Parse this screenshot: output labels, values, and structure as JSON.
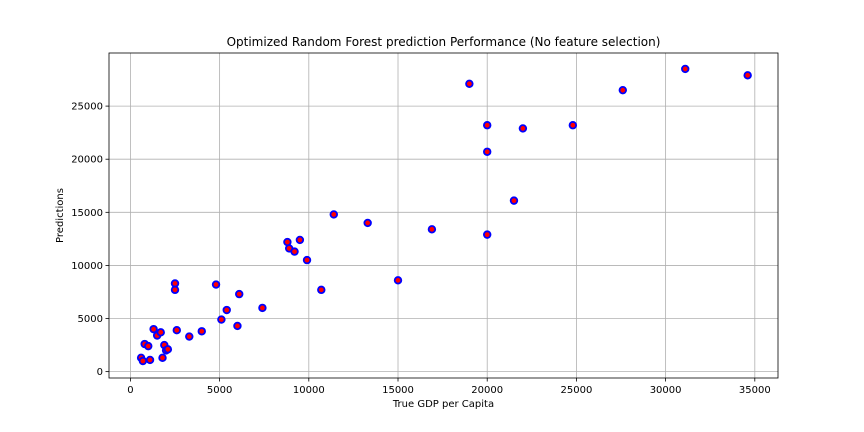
{
  "chart_data": {
    "type": "scatter",
    "title": "Optimized Random Forest prediction Performance (No feature selection)",
    "xlabel": "True GDP per Capita",
    "ylabel": "Predictions",
    "xlim": [
      -1200,
      36300
    ],
    "ylim": [
      -600,
      30000
    ],
    "xticks": [
      0,
      5000,
      10000,
      15000,
      20000,
      25000,
      30000,
      35000
    ],
    "yticks": [
      0,
      5000,
      10000,
      15000,
      20000,
      25000
    ],
    "grid": true,
    "marker": {
      "face_color": "#ff0000",
      "edge_color": "#0000ff"
    },
    "points": [
      {
        "x": 600,
        "y": 1300
      },
      {
        "x": 700,
        "y": 1000
      },
      {
        "x": 800,
        "y": 2600
      },
      {
        "x": 1000,
        "y": 2400
      },
      {
        "x": 1100,
        "y": 1100
      },
      {
        "x": 1300,
        "y": 4000
      },
      {
        "x": 1500,
        "y": 3400
      },
      {
        "x": 1700,
        "y": 3700
      },
      {
        "x": 1800,
        "y": 1300
      },
      {
        "x": 1900,
        "y": 2500
      },
      {
        "x": 2000,
        "y": 2000
      },
      {
        "x": 2100,
        "y": 2100
      },
      {
        "x": 2500,
        "y": 8300
      },
      {
        "x": 2500,
        "y": 7700
      },
      {
        "x": 2600,
        "y": 3900
      },
      {
        "x": 3300,
        "y": 3300
      },
      {
        "x": 4000,
        "y": 3800
      },
      {
        "x": 4800,
        "y": 8200
      },
      {
        "x": 5100,
        "y": 4900
      },
      {
        "x": 5400,
        "y": 5800
      },
      {
        "x": 6000,
        "y": 4300
      },
      {
        "x": 6100,
        "y": 7300
      },
      {
        "x": 7400,
        "y": 6000
      },
      {
        "x": 8800,
        "y": 12200
      },
      {
        "x": 8900,
        "y": 11600
      },
      {
        "x": 9200,
        "y": 11300
      },
      {
        "x": 9500,
        "y": 12400
      },
      {
        "x": 9900,
        "y": 10500
      },
      {
        "x": 10700,
        "y": 7700
      },
      {
        "x": 11400,
        "y": 14800
      },
      {
        "x": 13300,
        "y": 14000
      },
      {
        "x": 15000,
        "y": 8600
      },
      {
        "x": 16900,
        "y": 13400
      },
      {
        "x": 19000,
        "y": 27100
      },
      {
        "x": 20000,
        "y": 23200
      },
      {
        "x": 20000,
        "y": 20700
      },
      {
        "x": 20000,
        "y": 12900
      },
      {
        "x": 21500,
        "y": 16100
      },
      {
        "x": 22000,
        "y": 22900
      },
      {
        "x": 24800,
        "y": 23200
      },
      {
        "x": 27600,
        "y": 26500
      },
      {
        "x": 31100,
        "y": 28500
      },
      {
        "x": 34600,
        "y": 27900
      }
    ]
  }
}
